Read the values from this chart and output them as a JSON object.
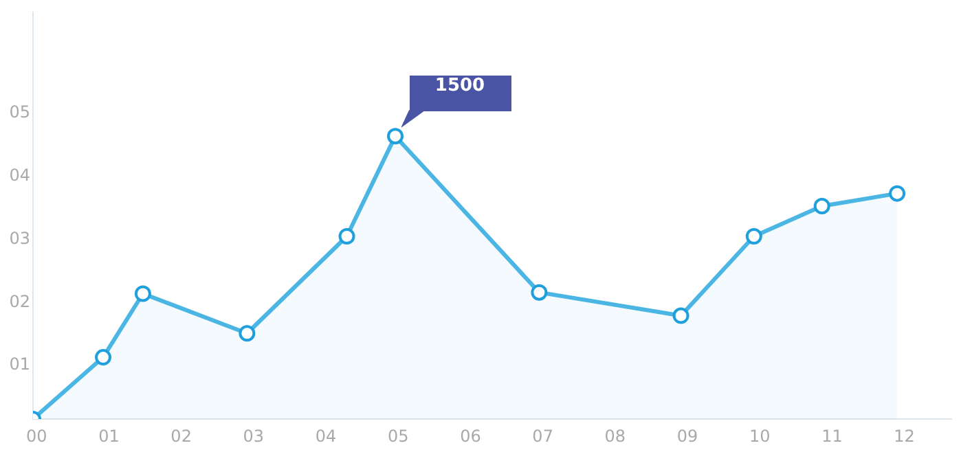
{
  "chart_data": {
    "type": "area",
    "x": [
      -0.05,
      0.92,
      1.47,
      2.91,
      4.29,
      4.96,
      6.95,
      8.91,
      9.92,
      10.86,
      11.9
    ],
    "series": [
      {
        "color": "#4bb6e4",
        "values": [
          0.15,
          1.13,
          2.14,
          1.51,
          3.05,
          4.64,
          2.16,
          1.79,
          3.05,
          3.53,
          3.73
        ]
      }
    ],
    "xlim": [
      -0.05,
      12.65
    ],
    "xticks": [
      {
        "value": 0,
        "label": "00"
      },
      {
        "value": 1,
        "label": "01"
      },
      {
        "value": 2,
        "label": "02"
      },
      {
        "value": 3,
        "label": "03"
      },
      {
        "value": 4,
        "label": "04"
      },
      {
        "value": 5,
        "label": "05"
      },
      {
        "value": 6,
        "label": "06"
      },
      {
        "value": 7,
        "label": "07"
      },
      {
        "value": 8,
        "label": "08"
      },
      {
        "value": 9,
        "label": "09"
      },
      {
        "value": 10,
        "label": "10"
      },
      {
        "value": 11,
        "label": "11"
      },
      {
        "value": 12,
        "label": "12"
      }
    ],
    "ylim": [
      0.15,
      6.6
    ],
    "yticks": [
      {
        "value": 1,
        "label": "01"
      },
      {
        "value": 2,
        "label": "02"
      },
      {
        "value": 3,
        "label": "03"
      },
      {
        "value": 4,
        "label": "04"
      },
      {
        "value": 5,
        "label": "05"
      }
    ],
    "annotations": [
      "1500"
    ],
    "grid": false,
    "legend": false,
    "marker": "circle",
    "line_style": "solid"
  }
}
